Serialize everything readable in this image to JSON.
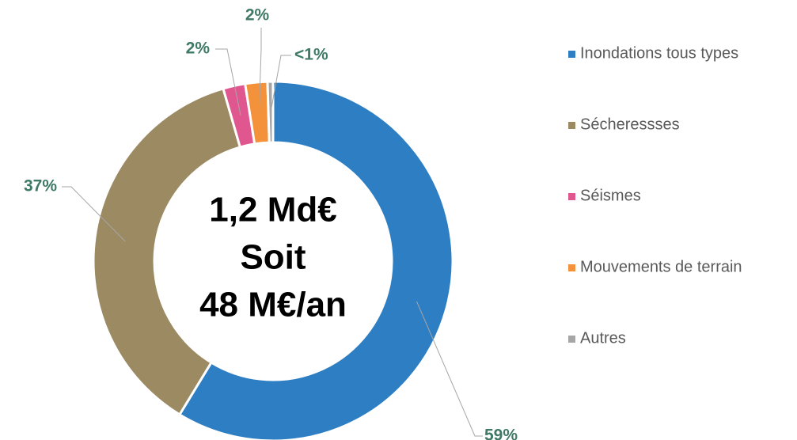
{
  "chart_data": {
    "type": "donut",
    "annotations": [
      "1,2 Md€",
      "Soit",
      "48 M€/an"
    ],
    "categories": [
      "Inondations tous types",
      "Sécheressses",
      "Séismes",
      "Mouvements de terrain",
      "Autres"
    ],
    "values": [
      59,
      37,
      2,
      2,
      0.5
    ],
    "value_labels": [
      "59%",
      "37%",
      "2%",
      "2%",
      "<1%"
    ],
    "colors": [
      "#2e7ec3",
      "#9b8a62",
      "#e0578f",
      "#f3923b",
      "#a6a6a6"
    ],
    "legend": "right"
  }
}
